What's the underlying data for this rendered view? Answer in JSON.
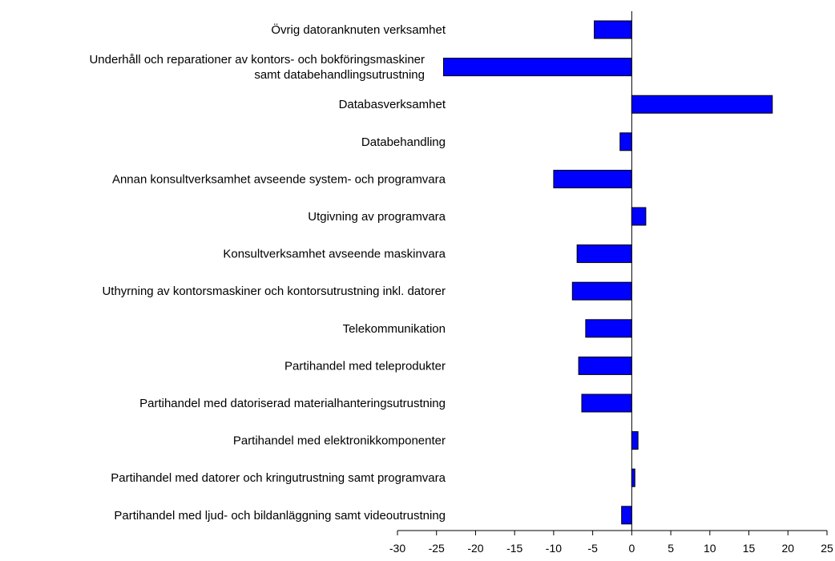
{
  "chart_data": {
    "type": "barh",
    "categories": [
      "Övrig datoranknuten verksamhet",
      "Underhåll och reparationer av kontors- och bokföringsmaskiner\nsamt databehandlingsutrustning",
      "Databasverksamhet",
      "Databehandling",
      "Annan konsultverksamhet avseende system- och programvara",
      "Utgivning av programvara",
      "Konsultverksamhet avseende maskinvara",
      "Uthyrning av kontorsmaskiner och kontorsutrustning inkl. datorer",
      "Telekommunikation",
      "Partihandel med teleprodukter",
      "Partihandel med datoriserad materialhanteringsutrustning",
      "Partihandel med elektronikkomponenter",
      "Partihandel med datorer och kringutrustning samt programvara",
      "Partihandel med ljud- och bildanläggning samt videoutrustning"
    ],
    "values": [
      -4.8,
      -24.1,
      18.0,
      -1.5,
      -10.0,
      1.8,
      -7.0,
      -7.6,
      -5.9,
      -6.8,
      -6.4,
      0.8,
      0.4,
      -1.3
    ],
    "color": "#0000ff",
    "xlim": [
      -30,
      25
    ],
    "xticks": [
      -30,
      -25,
      -20,
      -15,
      -10,
      -5,
      0,
      5,
      10,
      15,
      20,
      25
    ]
  }
}
